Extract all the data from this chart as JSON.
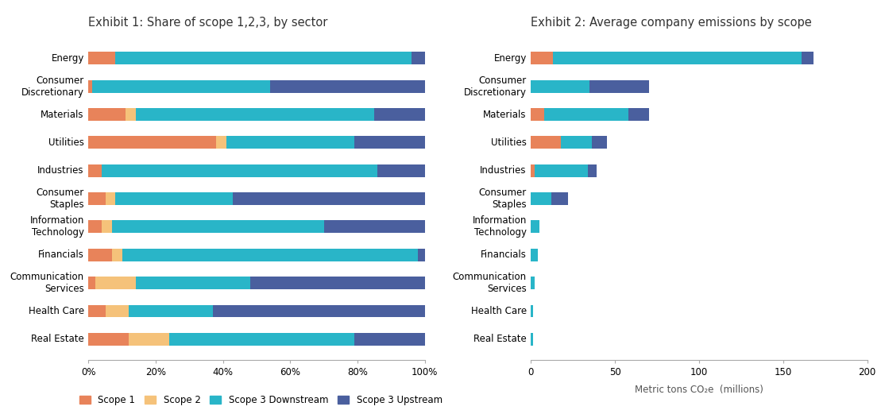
{
  "title1": "Exhibit 1: Share of scope 1,2,3, by sector",
  "title2": "Exhibit 2: Average company emissions by scope",
  "xlabel2": "Metric tons CO₂e  (millions)",
  "sectors": [
    "Energy",
    "Consumer\nDiscretionary",
    "Materials",
    "Utilities",
    "Industries",
    "Consumer\nStaples",
    "Information\nTechnology",
    "Financials",
    "Communication\nServices",
    "Health Care",
    "Real Estate"
  ],
  "colors": {
    "scope1": "#E8835A",
    "scope2": "#F5C27A",
    "scope3_down": "#29B5C8",
    "scope3_up": "#4A5F9E"
  },
  "chart1": {
    "scope1": [
      8,
      1,
      11,
      38,
      4,
      5,
      4,
      7,
      2,
      5,
      12
    ],
    "scope2": [
      0,
      0,
      3,
      3,
      0,
      3,
      3,
      3,
      12,
      7,
      12
    ],
    "scope3_down": [
      88,
      53,
      71,
      38,
      82,
      35,
      63,
      88,
      34,
      25,
      55
    ],
    "scope3_up": [
      4,
      46,
      15,
      21,
      14,
      57,
      30,
      2,
      52,
      63,
      21
    ]
  },
  "chart2": {
    "scope1": [
      13,
      0,
      8,
      18,
      2,
      0,
      0,
      0,
      0,
      0,
      0
    ],
    "scope2": [
      0,
      0,
      0,
      0,
      0,
      0,
      0,
      0,
      0,
      0,
      0
    ],
    "scope3_down": [
      148,
      35,
      50,
      18,
      32,
      12,
      5,
      4,
      2,
      1,
      1
    ],
    "scope3_up": [
      7,
      35,
      12,
      9,
      5,
      10,
      0,
      0,
      0,
      0,
      0
    ]
  },
  "legend_labels": [
    "Scope 1",
    "Scope 2",
    "Scope 3 Downstream",
    "Scope 3 Upstream"
  ],
  "chart2_xlim": [
    0,
    200
  ],
  "chart2_xticks": [
    0,
    50,
    100,
    150,
    200
  ]
}
